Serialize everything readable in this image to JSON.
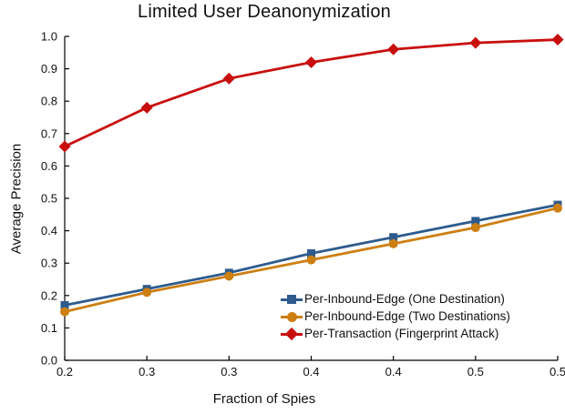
{
  "title": "Limited User Deanonymization",
  "axes": {
    "xlabel": "Fraction of Spies",
    "ylabel": "Average Precision"
  },
  "legend": {
    "items": [
      {
        "label": "Per-Inbound-Edge (One Destination)",
        "color": "#2E5B8E",
        "marker": "square-icon"
      },
      {
        "label": "Per-Inbound-Edge (Two Destinations)",
        "color": "#CC7F12",
        "marker": "circle-icon"
      },
      {
        "label": "Per-Transaction (Fingerprint Attack)",
        "color": "#C90E0E",
        "marker": "diamond-icon"
      }
    ]
  },
  "chart_data": {
    "type": "line",
    "title": "Limited User Deanonymization",
    "xlabel": "Fraction of Spies",
    "ylabel": "Average Precision",
    "x": [
      0.2,
      0.25,
      0.3,
      0.35,
      0.4,
      0.45,
      0.5
    ],
    "x_tick_labels": [
      "0.2",
      "0.3",
      "0.3",
      "0.4",
      "0.4",
      "0.5",
      "0.5"
    ],
    "xlim": [
      0.2,
      0.5
    ],
    "y_ticks": [
      0.0,
      0.1,
      0.2,
      0.3,
      0.4,
      0.5,
      0.6,
      0.7,
      0.8,
      0.9,
      1.0
    ],
    "y_tick_labels": [
      "0.0",
      "0.1",
      "0.2",
      "0.3",
      "0.4",
      "0.5",
      "0.6",
      "0.7",
      "0.8",
      "0.9",
      "1.0"
    ],
    "ylim": [
      0.0,
      1.0
    ],
    "grid": false,
    "legend_position": "lower-right-inside",
    "axis_color": "#000000",
    "series": [
      {
        "name": "Per-Inbound-Edge (One Destination)",
        "color": "#2E5B8E",
        "marker": "square",
        "values": [
          0.17,
          0.22,
          0.27,
          0.33,
          0.38,
          0.43,
          0.48
        ]
      },
      {
        "name": "Per-Inbound-Edge (Two Destinations)",
        "color": "#CC7F12",
        "marker": "circle",
        "values": [
          0.15,
          0.21,
          0.26,
          0.31,
          0.36,
          0.41,
          0.47
        ]
      },
      {
        "name": "Per-Transaction (Fingerprint Attack)",
        "color": "#C90E0E",
        "marker": "diamond",
        "values": [
          0.66,
          0.78,
          0.87,
          0.92,
          0.96,
          0.98,
          0.99
        ]
      }
    ]
  }
}
